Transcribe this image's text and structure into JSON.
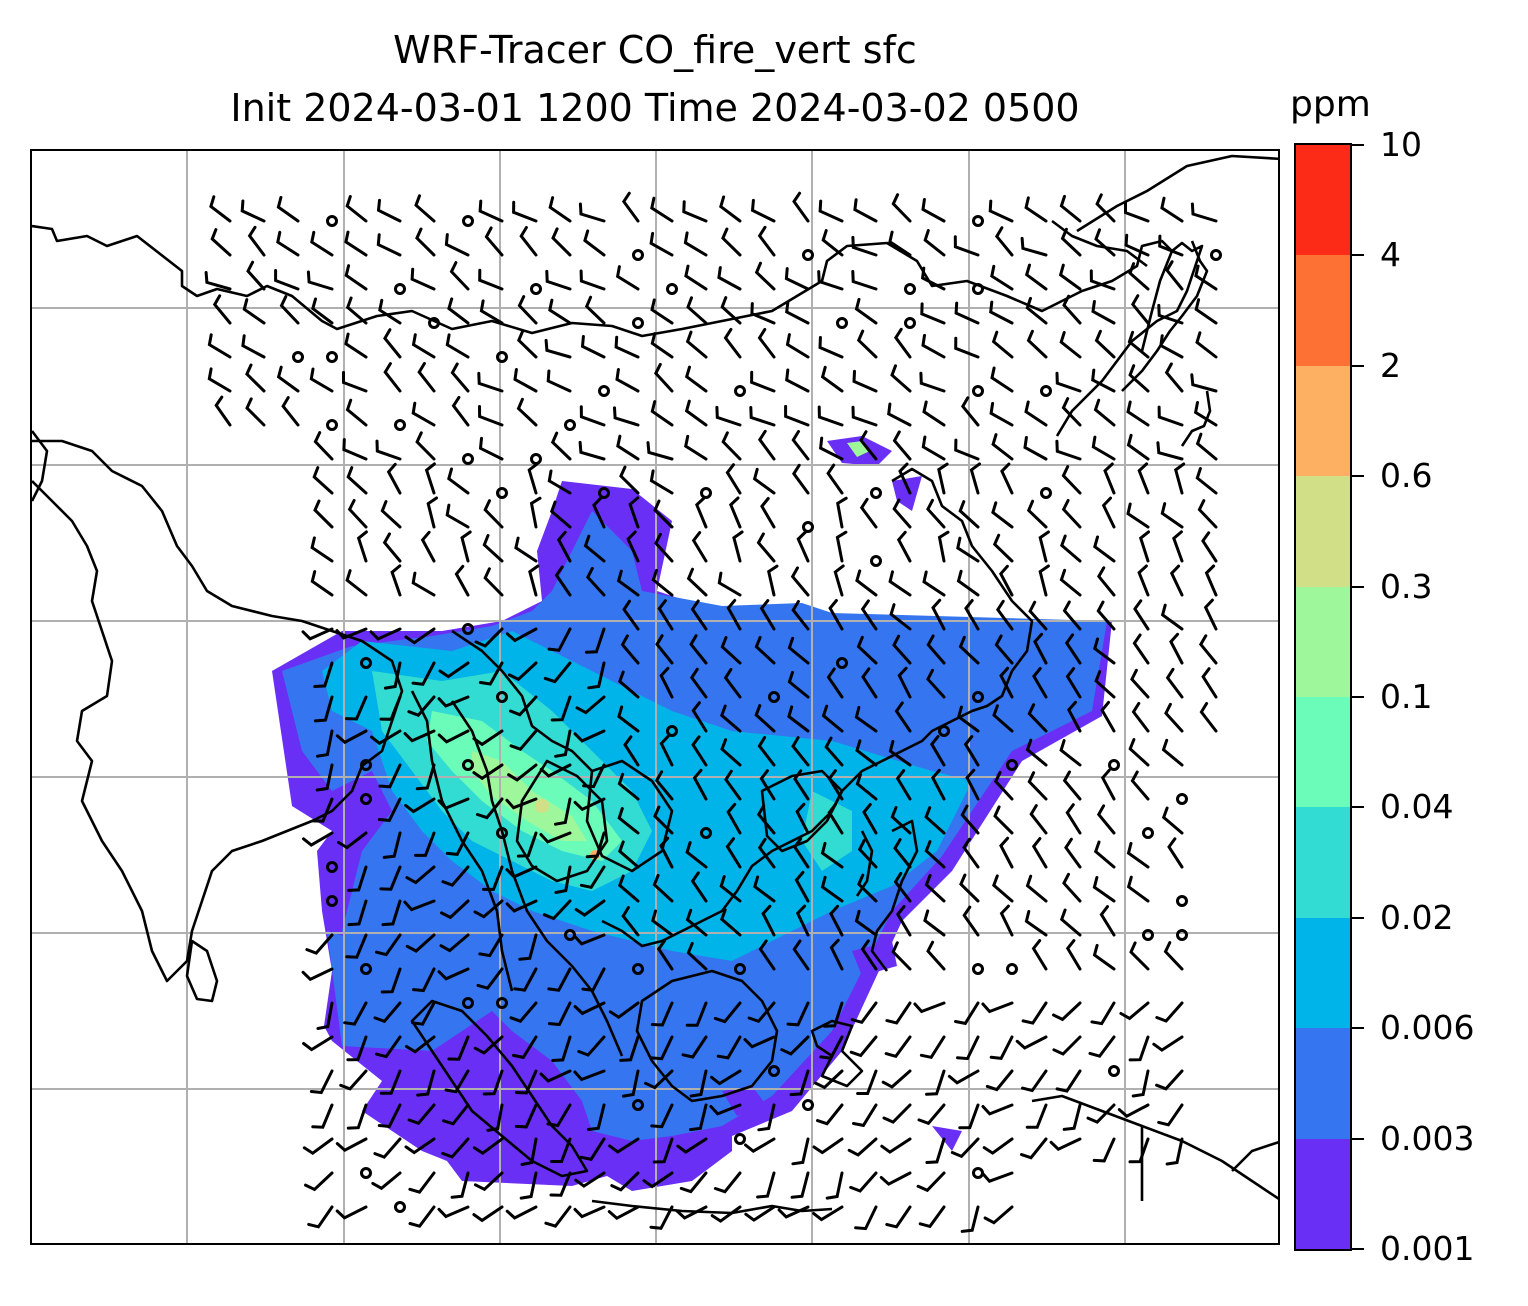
{
  "title": {
    "line1": "WRF-Tracer CO_fire_vert sfc",
    "line2": "Init 2024-03-01 1200 Time 2024-03-02 0500"
  },
  "colorbar": {
    "unit": "ppm",
    "levels": [
      "0.001",
      "0.003",
      "0.006",
      "0.02",
      "0.04",
      "0.1",
      "0.3",
      "0.6",
      "2",
      "4",
      "10"
    ],
    "colors": [
      "#6a2ff5",
      "#3575f0",
      "#00b3e8",
      "#33dcd3",
      "#6cfcba",
      "#9ef79a",
      "#d1e087",
      "#fdb062",
      "#fe7134",
      "#fb2b17"
    ]
  },
  "map": {
    "gridlines": true,
    "coastline_color": "#000000",
    "grid_color": "#b0b0b0"
  }
}
